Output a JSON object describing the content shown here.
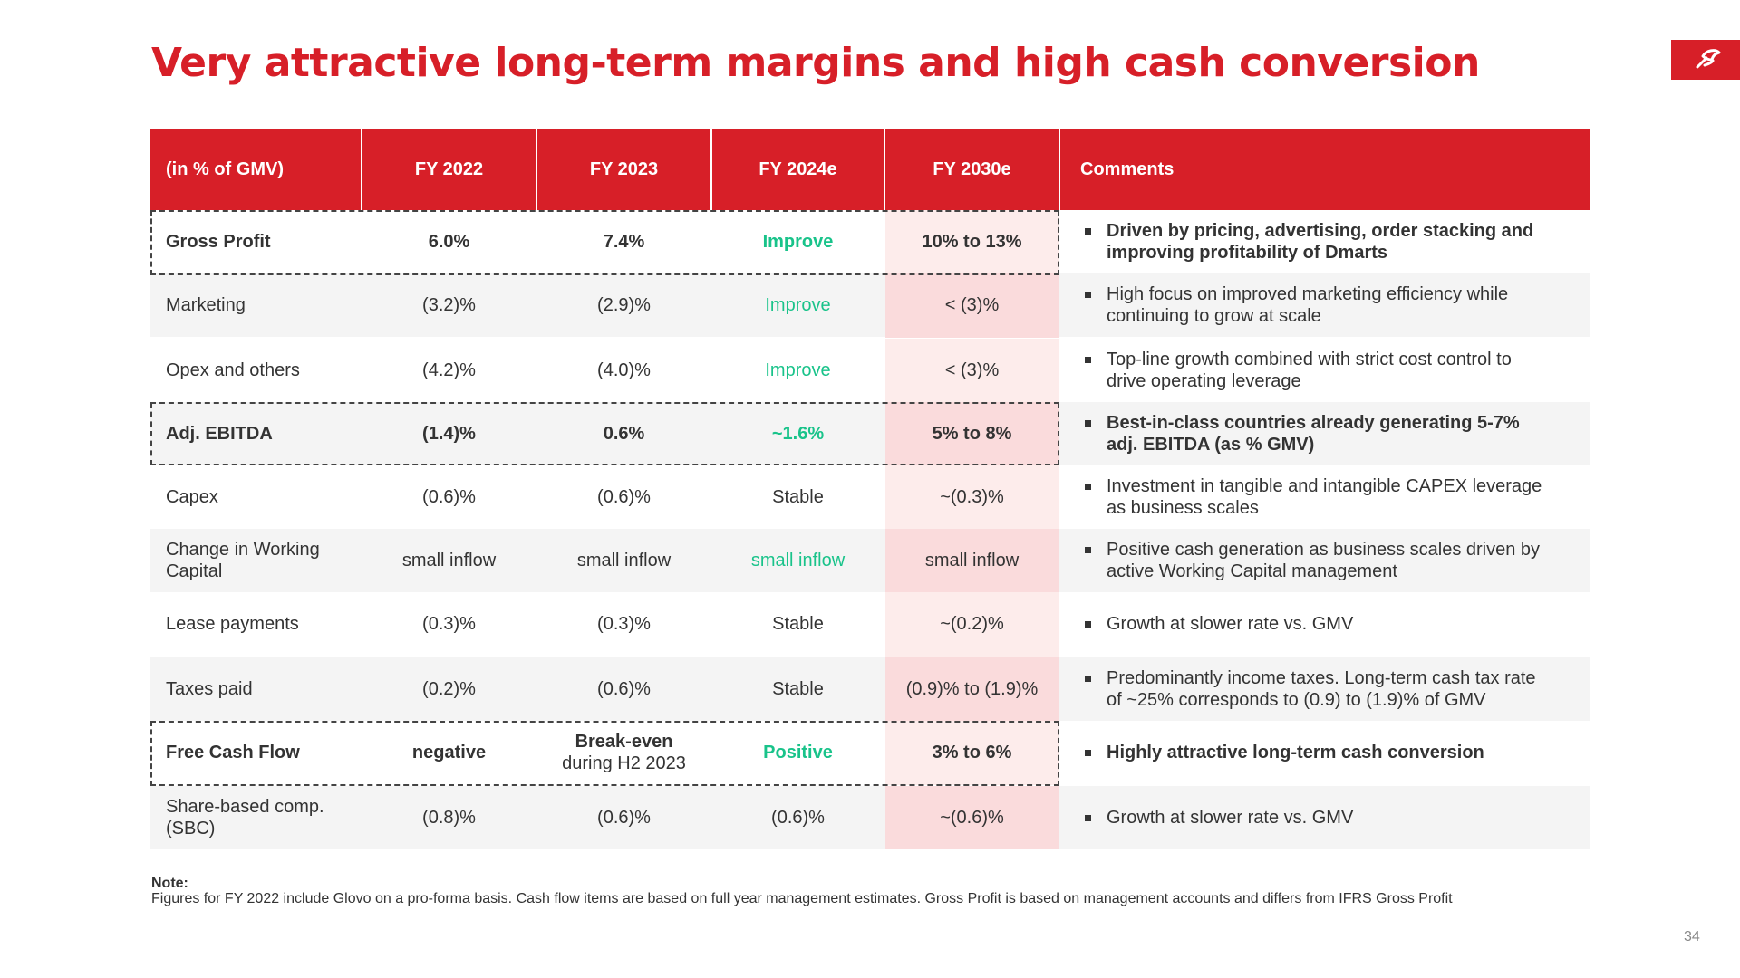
{
  "title": "Very attractive long-term margins and high cash conversion",
  "logo": {
    "icon": "brand-logo-icon",
    "color": "#d71f28"
  },
  "colors": {
    "accent": "#d71f28",
    "positive_green": "#19c38a",
    "row_gray": "#f4f4f4",
    "pink_column": "#fce3e4",
    "pink_column_gray": "#fadbdc"
  },
  "table": {
    "headers": [
      "(in % of GMV)",
      "FY 2022",
      "FY 2023",
      "FY 2024e",
      "FY 2030e",
      "Comments"
    ],
    "rows": [
      {
        "label": "Gross Profit",
        "fy2022": "6.0%",
        "fy2023": "7.4%",
        "fy2024e": "Improve",
        "fy2030e": "10% to 13%",
        "comment": "Driven by pricing, advertising, order stacking and improving profitability of Dmarts"
      },
      {
        "label": "Marketing",
        "fy2022": "(3.2)%",
        "fy2023": "(2.9)%",
        "fy2024e": "Improve",
        "fy2030e": "< (3)%",
        "comment": "High focus on improved marketing efficiency while continuing to grow at scale"
      },
      {
        "label": "Opex and others",
        "fy2022": "(4.2)%",
        "fy2023": "(4.0)%",
        "fy2024e": "Improve",
        "fy2030e": "< (3)%",
        "comment": "Top-line growth combined with strict cost control to drive operating leverage"
      },
      {
        "label": "Adj. EBITDA",
        "fy2022": "(1.4)%",
        "fy2023": "0.6%",
        "fy2024e": "~1.6%",
        "fy2030e": "5% to 8%",
        "comment": "Best-in-class countries already generating 5-7% adj. EBITDA (as % GMV)"
      },
      {
        "label": "Capex",
        "fy2022": "(0.6)%",
        "fy2023": "(0.6)%",
        "fy2024e": "Stable",
        "fy2030e": "~(0.3)%",
        "comment": "Investment in tangible and intangible CAPEX leverage as business scales"
      },
      {
        "label": "Change in Working Capital",
        "fy2022": "small inflow",
        "fy2023": "small inflow",
        "fy2024e": "small inflow",
        "fy2030e": "small inflow",
        "comment": "Positive cash generation as business scales driven by active Working Capital management"
      },
      {
        "label": "Lease payments",
        "fy2022": "(0.3)%",
        "fy2023": "(0.3)%",
        "fy2024e": "Stable",
        "fy2030e": "~(0.2)%",
        "comment": "Growth at slower rate vs. GMV"
      },
      {
        "label": "Taxes paid",
        "fy2022": "(0.2)%",
        "fy2023": "(0.6)%",
        "fy2024e": "Stable",
        "fy2030e": "(0.9)% to (1.9)%",
        "comment": "Predominantly income taxes. Long-term cash tax rate of ~25% corresponds to (0.9) to (1.9)%  of GMV"
      },
      {
        "label": "Free Cash Flow",
        "fy2022": "negative",
        "fy2023_bold": "Break-even",
        "fy2023_normal": "during H2 2023",
        "fy2024e": "Positive",
        "fy2030e": "3% to 6%",
        "comment": "Highly attractive long-term cash conversion"
      },
      {
        "label": "Share-based comp. (SBC)",
        "fy2022": "(0.8)%",
        "fy2023": "(0.6)%",
        "fy2024e": "(0.6)%",
        "fy2030e": "~(0.6)%",
        "comment": "Growth at slower rate vs. GMV"
      }
    ]
  },
  "note": {
    "heading": "Note:",
    "text": "Figures for FY 2022 include Glovo on a pro-forma basis. Cash flow items are based on full year management estimates. Gross Profit is based on management accounts and differs from IFRS Gross Profit"
  },
  "page_number": "34"
}
